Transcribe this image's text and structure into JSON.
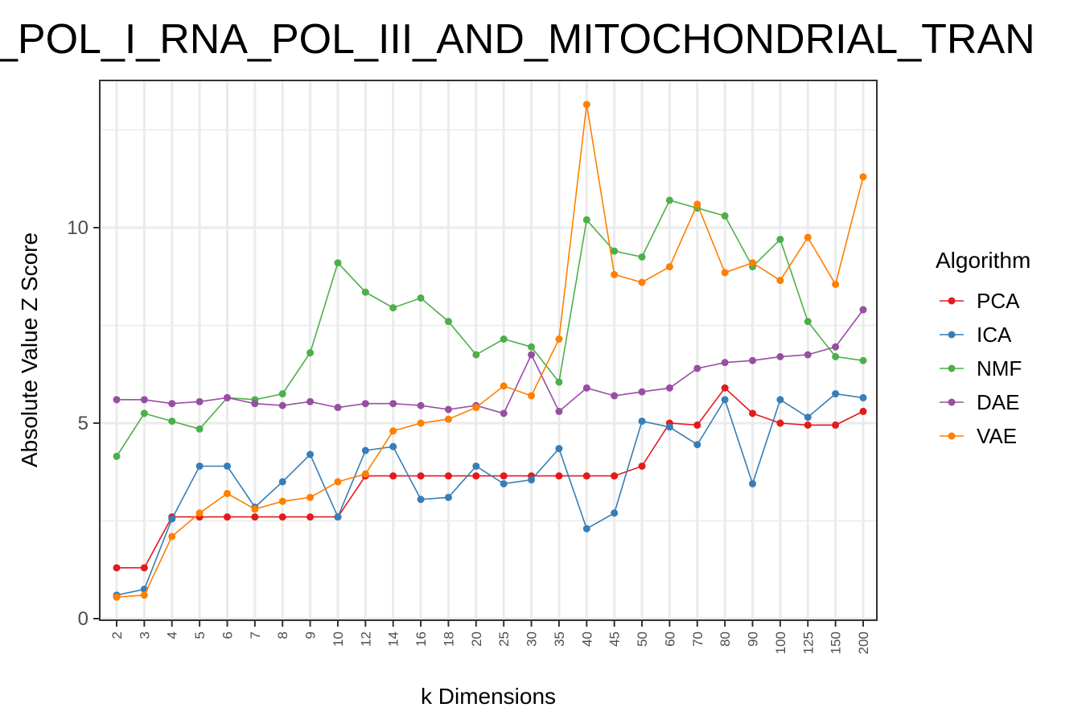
{
  "chart_data": {
    "type": "line",
    "title": "_POL_I_RNA_POL_III_AND_MITOCHONDRIAL_TRAN",
    "xlabel": "k Dimensions",
    "ylabel": "Absolute Value Z Score",
    "categories": [
      "2",
      "3",
      "4",
      "5",
      "6",
      "7",
      "8",
      "9",
      "10",
      "12",
      "14",
      "16",
      "18",
      "20",
      "25",
      "30",
      "35",
      "40",
      "45",
      "50",
      "60",
      "70",
      "80",
      "90",
      "100",
      "125",
      "150",
      "200"
    ],
    "ylim": [
      0,
      13.5
    ],
    "yticks": [
      0,
      5,
      10
    ],
    "grid": true,
    "legend": {
      "title": "Algorithm",
      "position": "right"
    },
    "series": [
      {
        "name": "PCA",
        "color": "#e41a1c",
        "values": [
          1.3,
          1.3,
          2.6,
          2.6,
          2.6,
          2.6,
          2.6,
          2.6,
          2.6,
          3.65,
          3.65,
          3.65,
          3.65,
          3.65,
          3.65,
          3.65,
          3.65,
          3.65,
          3.65,
          3.9,
          5.0,
          4.95,
          5.9,
          5.25,
          5.0,
          4.95,
          4.95,
          5.3
        ]
      },
      {
        "name": "ICA",
        "color": "#377eb8",
        "values": [
          0.6,
          0.75,
          2.55,
          3.9,
          3.9,
          2.85,
          3.5,
          4.2,
          2.6,
          4.3,
          4.4,
          3.05,
          3.1,
          3.9,
          3.45,
          3.55,
          4.35,
          2.3,
          2.7,
          5.05,
          4.9,
          4.45,
          5.6,
          3.45,
          5.6,
          5.15,
          5.75,
          5.65
        ]
      },
      {
        "name": "NMF",
        "color": "#4daf4a",
        "values": [
          4.15,
          5.25,
          5.05,
          4.85,
          5.65,
          5.6,
          5.75,
          6.8,
          9.1,
          8.35,
          7.95,
          8.2,
          7.6,
          6.75,
          7.15,
          6.95,
          6.05,
          10.2,
          9.4,
          9.25,
          10.7,
          10.5,
          10.3,
          9.0,
          9.7,
          7.6,
          6.7,
          6.6
        ]
      },
      {
        "name": "DAE",
        "color": "#984ea3",
        "values": [
          5.6,
          5.6,
          5.5,
          5.55,
          5.65,
          5.5,
          5.45,
          5.55,
          5.4,
          5.5,
          5.5,
          5.45,
          5.35,
          5.45,
          5.25,
          6.75,
          5.3,
          5.9,
          5.7,
          5.8,
          5.9,
          6.4,
          6.55,
          6.6,
          6.7,
          6.75,
          6.95,
          7.9
        ]
      },
      {
        "name": "VAE",
        "color": "#ff7f00",
        "values": [
          0.55,
          0.6,
          2.1,
          2.7,
          3.2,
          2.8,
          3.0,
          3.1,
          3.5,
          3.7,
          4.8,
          5.0,
          5.1,
          5.4,
          5.95,
          5.7,
          7.15,
          13.15,
          8.8,
          8.6,
          9.0,
          10.6,
          8.85,
          9.1,
          8.65,
          9.75,
          8.55,
          11.3
        ]
      }
    ]
  }
}
